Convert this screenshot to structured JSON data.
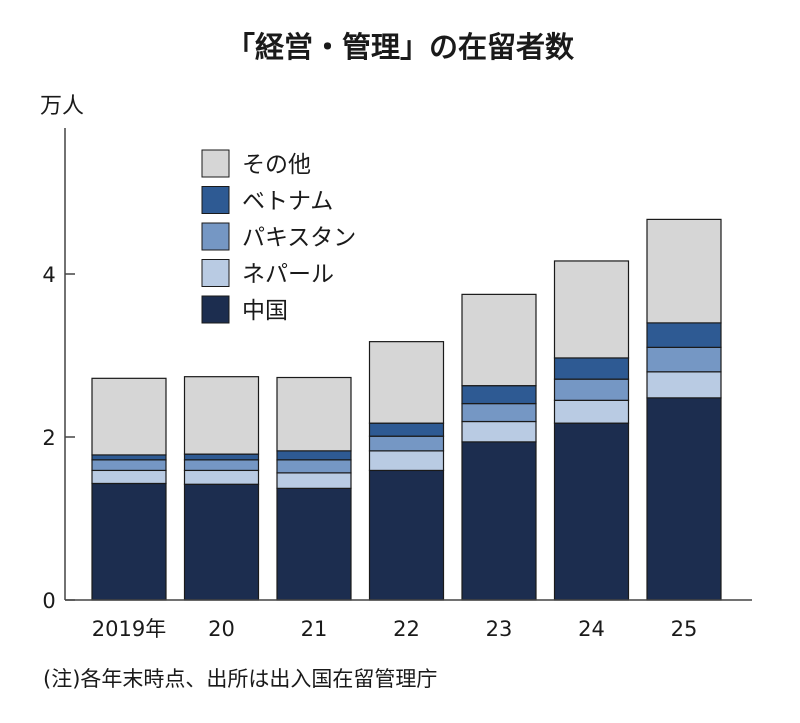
{
  "chart_data": {
    "type": "bar",
    "stacked": true,
    "title": "「経営・管理」の在留者数",
    "ylabel": "万人",
    "xlabel": "",
    "ylim": [
      0,
      5
    ],
    "yticks": [
      0,
      2,
      4
    ],
    "grid": false,
    "legend_position": "top-left",
    "categories": [
      "2019年",
      "20",
      "21",
      "22",
      "23",
      "24",
      "25"
    ],
    "series": [
      {
        "name": "中国",
        "color": "#1c2d4f",
        "values": [
          1.43,
          1.42,
          1.37,
          1.59,
          1.94,
          2.17,
          2.48
        ]
      },
      {
        "name": "ネパール",
        "color": "#b9cbe3",
        "values": [
          0.16,
          0.17,
          0.19,
          0.24,
          0.25,
          0.28,
          0.32
        ]
      },
      {
        "name": "パキスタン",
        "color": "#7597c4",
        "values": [
          0.13,
          0.13,
          0.16,
          0.18,
          0.22,
          0.26,
          0.3
        ]
      },
      {
        "name": "ベトナム",
        "color": "#2e5a93",
        "values": [
          0.06,
          0.07,
          0.11,
          0.16,
          0.22,
          0.26,
          0.3
        ]
      },
      {
        "name": "その他",
        "color": "#d6d6d6",
        "values": [
          0.94,
          0.95,
          0.9,
          1.0,
          1.12,
          1.19,
          1.27
        ]
      }
    ],
    "note": "(注)各年末時点、出所は出入国在留管理庁"
  }
}
